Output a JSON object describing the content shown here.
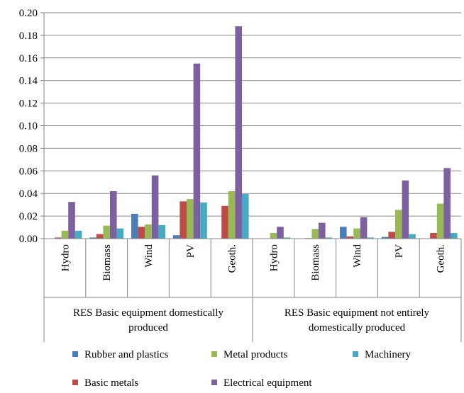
{
  "chart_data": {
    "type": "bar",
    "title": "",
    "xlabel": "",
    "ylabel": "",
    "ylim": [
      0,
      0.2
    ],
    "yticks": [
      "0.00",
      "0.02",
      "0.04",
      "0.06",
      "0.08",
      "0.10",
      "0.12",
      "0.14",
      "0.16",
      "0.18",
      "0.20"
    ],
    "grid": true,
    "legend_position": "bottom",
    "groups": [
      {
        "label_lines": [
          "RES Basic equipment domestically",
          "produced"
        ],
        "categories": [
          "Hydro",
          "Biomass",
          "Wind",
          "PV",
          "Geoth."
        ]
      },
      {
        "label_lines": [
          "RES Basic equipment not entirely",
          "domestically produced"
        ],
        "categories": [
          "Hydro",
          "Biomass",
          "Wind",
          "PV",
          "Geoth."
        ]
      }
    ],
    "series": [
      {
        "name": "Rubber and plastics",
        "color": "#4a7ebb",
        "values": [
          0.0,
          0.001,
          0.022,
          0.003,
          0.0,
          0.0,
          0.0,
          0.0105,
          0.0015,
          0.0
        ]
      },
      {
        "name": "Basic metals",
        "color": "#be4b48",
        "values": [
          0.001,
          0.004,
          0.0105,
          0.033,
          0.029,
          0.0,
          0.0005,
          0.002,
          0.006,
          0.005
        ]
      },
      {
        "name": "Metal products",
        "color": "#98b954",
        "values": [
          0.007,
          0.0115,
          0.0125,
          0.035,
          0.042,
          0.005,
          0.0085,
          0.009,
          0.0255,
          0.031
        ]
      },
      {
        "name": "Electrical equipment",
        "color": "#7d60a0",
        "values": [
          0.0325,
          0.042,
          0.056,
          0.155,
          0.188,
          0.0105,
          0.014,
          0.019,
          0.0515,
          0.0625
        ]
      },
      {
        "name": "Machinery",
        "color": "#46aac5",
        "values": [
          0.007,
          0.009,
          0.012,
          0.032,
          0.0395,
          0.001,
          0.001,
          0.001,
          0.004,
          0.005
        ]
      }
    ]
  }
}
